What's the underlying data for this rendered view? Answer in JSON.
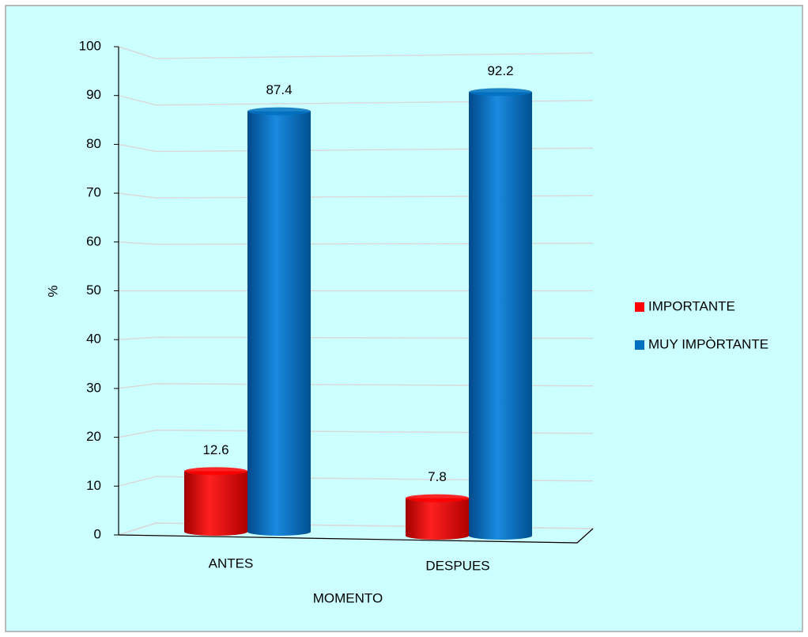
{
  "chart_data": {
    "type": "bar",
    "xlabel": "MOMENTO",
    "ylabel": "%",
    "categories": [
      "ANTES",
      "DESPUES"
    ],
    "series": [
      {
        "name": "IMPORTANTE",
        "color": "#ff0000",
        "values": [
          12.6,
          7.8
        ]
      },
      {
        "name": "MUY IMPÒRTANTE",
        "color": "#0070c0",
        "values": [
          87.4,
          92.2
        ]
      }
    ],
    "ylim": [
      0,
      100
    ],
    "yticks": [
      0,
      10,
      20,
      30,
      40,
      50,
      60,
      70,
      80,
      90,
      100
    ],
    "grid": true,
    "legend": "right"
  }
}
